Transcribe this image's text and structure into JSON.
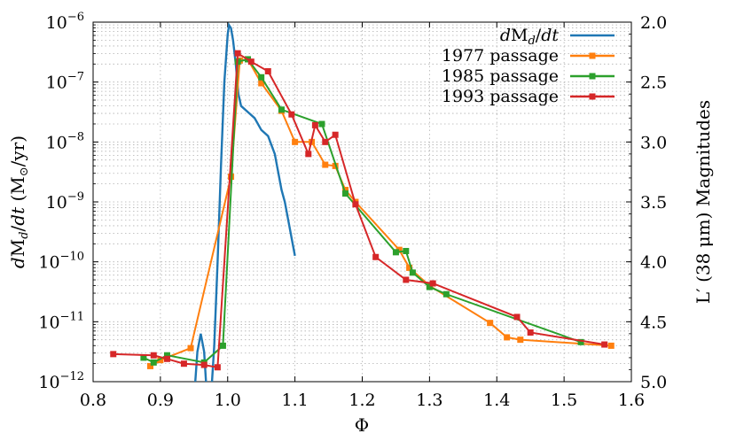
{
  "chart_data": {
    "type": "line",
    "xlabel": "Φ",
    "ylabel_left": "dM_d/dt (M⊙/yr)",
    "ylabel_right": "L′ (38 μm) Magnitudes",
    "xlim": [
      0.8,
      1.6
    ],
    "xticks": [
      "0.8",
      "0.9",
      "1.0",
      "1.1",
      "1.2",
      "1.3",
      "1.4",
      "1.5",
      "1.6"
    ],
    "ylim_left_log10": [
      -12,
      -6
    ],
    "yticks_left_exp": [
      "−12",
      "−11",
      "−10",
      "−9",
      "−8",
      "−7",
      "−6"
    ],
    "ylim_right": [
      5.0,
      2.0
    ],
    "yticks_right": [
      "5.0",
      "4.5",
      "4.0",
      "3.5",
      "3.0",
      "2.5",
      "2.0"
    ],
    "grid": true,
    "legend_position": "top-right",
    "legend": [
      {
        "label": "dM_d/dt",
        "color": "#1f77b4",
        "marker": false
      },
      {
        "label": "1977 passage",
        "color": "#ff7f0e",
        "marker": true
      },
      {
        "label": "1985 passage",
        "color": "#2ca02c",
        "marker": true
      },
      {
        "label": "1993 passage",
        "color": "#d62728",
        "marker": true
      }
    ],
    "model": {
      "name": "dM_d/dt",
      "color": "#1f77b4",
      "x": [
        0.95,
        0.955,
        0.96,
        0.965,
        0.97,
        0.975,
        0.98,
        0.985,
        0.99,
        0.995,
        1.0,
        1.002,
        1.005,
        1.008,
        1.012,
        1.016,
        1.02,
        1.03,
        1.04,
        1.05,
        1.06,
        1.07,
        1.075,
        1.08,
        1.085,
        1.09,
        1.095,
        1.1
      ],
      "log10_y": [
        -12.3,
        -11.5,
        -11.2,
        -11.5,
        -12.4,
        -12.3,
        -11.4,
        -10.0,
        -8.4,
        -7.0,
        -6.2,
        -6.05,
        -6.1,
        -6.3,
        -6.7,
        -7.2,
        -7.4,
        -7.5,
        -7.6,
        -7.8,
        -7.9,
        -8.2,
        -8.5,
        -8.8,
        -9.0,
        -9.3,
        -9.6,
        -9.9
      ]
    },
    "series": [
      {
        "name": "1977 passage",
        "color": "#ff7f0e",
        "x": [
          0.885,
          0.9,
          0.945,
          1.005,
          1.018,
          1.03,
          1.05,
          1.08,
          1.1,
          1.125,
          1.145,
          1.16,
          1.175,
          1.19,
          1.255,
          1.27,
          1.3,
          1.39,
          1.415,
          1.435,
          1.57
        ],
        "mag": [
          4.87,
          4.82,
          4.72,
          3.29,
          2.32,
          2.31,
          2.51,
          2.74,
          3.0,
          3.0,
          3.19,
          3.2,
          3.4,
          3.5,
          3.9,
          4.05,
          4.2,
          4.51,
          4.63,
          4.65,
          4.7
        ]
      },
      {
        "name": "1985 passage",
        "color": "#2ca02c",
        "x": [
          0.875,
          0.89,
          0.91,
          0.965,
          0.993,
          1.015,
          1.03,
          1.05,
          1.08,
          1.14,
          1.175,
          1.25,
          1.265,
          1.275,
          1.3,
          1.325,
          1.525
        ],
        "mag": [
          4.8,
          4.84,
          4.78,
          4.84,
          4.7,
          2.33,
          2.31,
          2.46,
          2.73,
          2.85,
          3.43,
          3.92,
          3.91,
          4.09,
          4.21,
          4.27,
          4.67
        ]
      },
      {
        "name": "1993 passage",
        "color": "#d62728",
        "x": [
          0.83,
          0.89,
          0.91,
          0.935,
          0.965,
          0.985,
          1.015,
          1.035,
          1.06,
          1.095,
          1.12,
          1.13,
          1.145,
          1.16,
          1.19,
          1.22,
          1.265,
          1.305,
          1.43,
          1.45,
          1.56
        ],
        "mag": [
          4.77,
          4.78,
          4.81,
          4.85,
          4.86,
          4.88,
          2.26,
          2.33,
          2.41,
          2.77,
          3.1,
          2.86,
          3.0,
          2.94,
          3.52,
          3.96,
          4.15,
          4.18,
          4.46,
          4.59,
          4.69
        ]
      }
    ]
  }
}
